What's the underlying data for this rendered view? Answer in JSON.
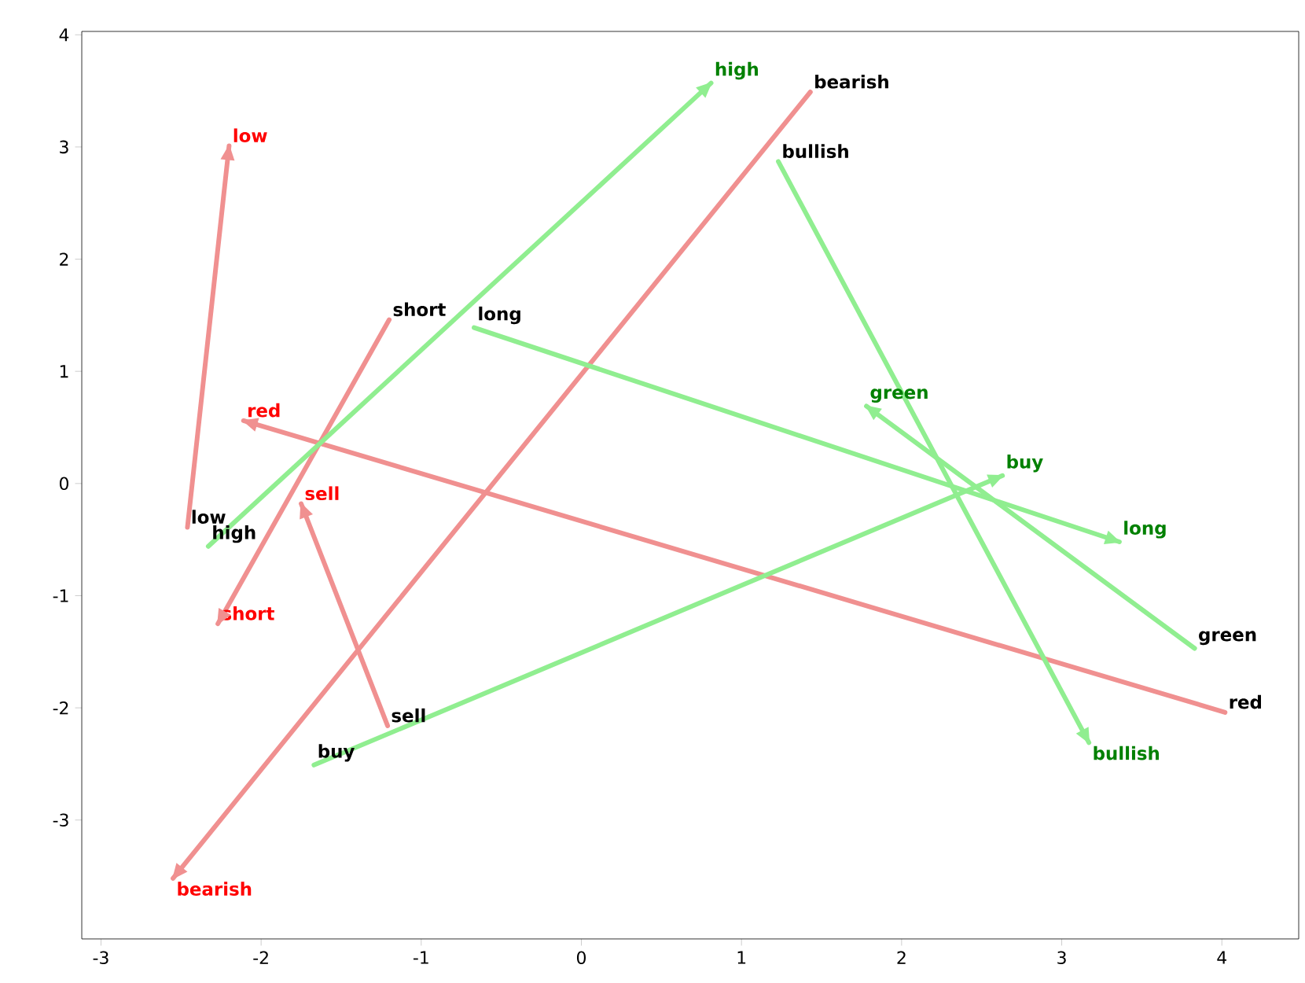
{
  "chart_data": {
    "type": "line",
    "xlim": [
      -3.12,
      4.48
    ],
    "ylim": [
      -4.06,
      4.03
    ],
    "xticks": [
      -3,
      -2,
      -1,
      0,
      1,
      2,
      3,
      4
    ],
    "yticks": [
      -3,
      -2,
      -1,
      0,
      1,
      2,
      3,
      4
    ],
    "series": [
      {
        "color": "#f09090",
        "x": [
          -2.46,
          -2.2
        ],
        "values": [
          -0.39,
          3.01
        ]
      },
      {
        "color": "#f09090",
        "x": [
          -1.2,
          -2.27
        ],
        "values": [
          1.46,
          -1.25
        ]
      },
      {
        "color": "#f09090",
        "x": [
          1.43,
          -2.55
        ],
        "values": [
          3.49,
          -3.52
        ]
      },
      {
        "color": "#f09090",
        "x": [
          -1.21,
          -1.75
        ],
        "values": [
          -2.16,
          -0.18
        ]
      },
      {
        "color": "#f09090",
        "x": [
          4.02,
          -2.11
        ],
        "values": [
          -2.04,
          0.56
        ]
      },
      {
        "color": "#90ee90",
        "x": [
          -2.33,
          0.81
        ],
        "values": [
          -0.56,
          3.57
        ]
      },
      {
        "color": "#90ee90",
        "x": [
          -0.67,
          3.36
        ],
        "values": [
          1.39,
          -0.52
        ]
      },
      {
        "color": "#90ee90",
        "x": [
          1.23,
          3.17
        ],
        "values": [
          2.87,
          -2.31
        ]
      },
      {
        "color": "#90ee90",
        "x": [
          3.83,
          1.78
        ],
        "values": [
          -1.47,
          0.69
        ]
      },
      {
        "color": "#90ee90",
        "x": [
          -1.67,
          2.63
        ],
        "values": [
          -2.51,
          0.07
        ]
      }
    ],
    "annotations": [
      {
        "text": "low",
        "x": -2.46,
        "y": -0.39
      },
      {
        "text": "low",
        "x": -2.2,
        "y": 3.01
      },
      {
        "text": "short",
        "x": -1.2,
        "y": 1.46
      },
      {
        "text": "short",
        "x": -2.27,
        "y": -1.25
      },
      {
        "text": "bearish",
        "x": 1.43,
        "y": 3.49
      },
      {
        "text": "bearish",
        "x": -2.55,
        "y": -3.52
      },
      {
        "text": "sell",
        "x": -1.21,
        "y": -2.16
      },
      {
        "text": "sell",
        "x": -1.75,
        "y": -0.18
      },
      {
        "text": "red",
        "x": 4.02,
        "y": -2.04
      },
      {
        "text": "red",
        "x": -2.11,
        "y": 0.56
      },
      {
        "text": "high",
        "x": -2.33,
        "y": -0.56
      },
      {
        "text": "high",
        "x": 0.81,
        "y": 3.57
      },
      {
        "text": "long",
        "x": -0.67,
        "y": 1.39
      },
      {
        "text": "long",
        "x": 3.36,
        "y": -0.52
      },
      {
        "text": "bullish",
        "x": 1.23,
        "y": 2.87
      },
      {
        "text": "bullish",
        "x": 3.17,
        "y": -2.31
      },
      {
        "text": "green",
        "x": 3.83,
        "y": -1.47
      },
      {
        "text": "green",
        "x": 1.78,
        "y": 0.69
      },
      {
        "text": "buy",
        "x": -1.67,
        "y": -2.51
      },
      {
        "text": "buy",
        "x": 2.63,
        "y": 0.07
      }
    ]
  }
}
